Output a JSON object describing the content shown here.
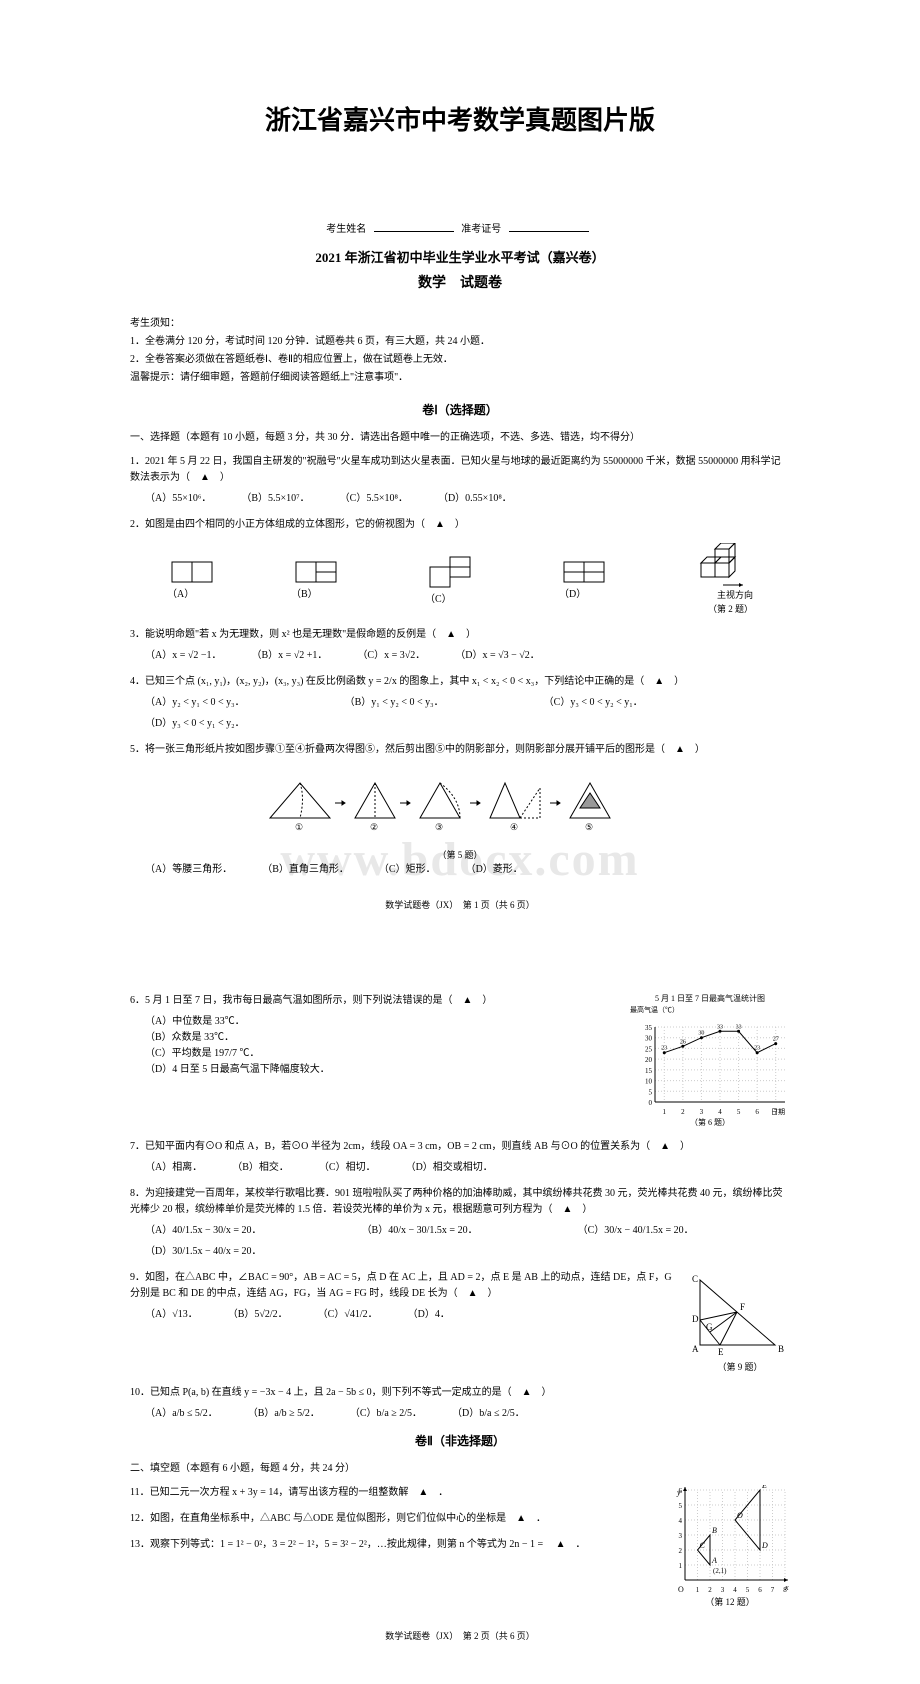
{
  "main_title": "浙江省嘉兴市中考数学真题图片版",
  "header": {
    "candidate_name_label": "考生姓名",
    "ticket_label": "准考证号",
    "exam_title": "2021 年浙江省初中毕业生学业水平考试（嘉兴卷）",
    "subject": "数学　试题卷"
  },
  "instructions": {
    "title": "考生须知：",
    "lines": [
      "1．全卷满分 120 分，考试时间 120 分钟．试题卷共 6 页，有三大题，共 24 小题．",
      "2．全卷答案必须做在答题纸卷Ⅰ、卷Ⅱ的相应位置上，做在试题卷上无效．",
      "温馨提示：请仔细审题，答题前仔细阅读答题纸上\"注意事项\"．"
    ]
  },
  "section1_title": "卷Ⅰ（选择题）",
  "group1_header": "一、选择题（本题有 10 小题，每题 3 分，共 30 分．请选出各题中唯一的正确选项，不选、多选、错选，均不得分）",
  "q1": {
    "text": "1．2021 年 5 月 22 日，我国自主研发的\"祝融号\"火星车成功到达火星表面．已知火星与地球的最近距离约为 55000000 千米，数据 55000000 用科学记数法表示为（　▲　）",
    "a": "（A）55×10⁶．",
    "b": "（B）5.5×10⁷．",
    "c": "（C）5.5×10⁸．",
    "d": "（D）0.55×10⁸．"
  },
  "q2": {
    "text": "2．如图是由四个相同的小正方体组成的立体图形，它的俯视图为（　▲　）",
    "labels": [
      "（A）",
      "（B）",
      "（C）",
      "（D）"
    ],
    "caption": "主视方向\n（第 2 题）"
  },
  "q3": {
    "text": "3．能说明命题\"若 x 为无理数，则 x² 也是无理数\"是假命题的反例是（　▲　）",
    "a": "（A）x = √2 −1．",
    "b": "（B）x = √2 +1．",
    "c": "（C）x = 3√2．",
    "d": "（D）x = √3 − √2．"
  },
  "q4": {
    "text": "4．已知三个点 (x₁, y₁)，(x₂, y₂)，(x₃, y₃) 在反比例函数 y = 2/x 的图象上，其中 x₁ < x₂ < 0 < x₃，下列结论中正确的是（　▲　）",
    "a": "（A）y₂ < y₁ < 0 < y₃．",
    "b": "（B）y₁ < y₂ < 0 < y₃．",
    "c": "（C）y₃ < 0 < y₂ < y₁．",
    "d": "（D）y₃ < 0 < y₁ < y₂．"
  },
  "q5": {
    "text": "5．将一张三角形纸片按如图步骤①至④折叠两次得图⑤，然后剪出图⑤中的阴影部分，则阴影部分展开铺平后的图形是（　▲　）",
    "caption": "（第 5 题）",
    "a": "（A）等腰三角形．",
    "b": "（B）直角三角形．",
    "c": "（C）矩形．",
    "d": "（D）菱形．",
    "steps": [
      "①",
      "②",
      "③",
      "④",
      "⑤"
    ]
  },
  "watermark": "www.bdocx.com",
  "footer1": "数学试题卷（JX）　第 1 页（共 6 页）",
  "q6": {
    "text": "6．5 月 1 日至 7 日，我市每日最高气温如图所示，则下列说法错误的是（　▲　）",
    "a": "（A）中位数是 33℃．",
    "b": "（B）众数是 33℃．",
    "c": "（C）平均数是 197/7 ℃．",
    "d": "（D）4 日至 5 日最高气温下降幅度较大．",
    "chart": {
      "title": "5 月 1 日至 7 日最高气温统计图",
      "ylabel": "最高气温（℃）",
      "xlabel": "日期",
      "x_categories": [
        "1",
        "2",
        "3",
        "4",
        "5",
        "6",
        "7"
      ],
      "values": [
        23,
        26,
        30,
        33,
        33,
        23,
        27.25
      ],
      "visible_labels": [
        "23",
        "26",
        "30",
        "33",
        "33",
        "23",
        "27"
      ],
      "ylim": [
        0,
        35
      ],
      "yticks": [
        0,
        5,
        10,
        15,
        20,
        25,
        30,
        35
      ],
      "line_color": "#000000",
      "marker": "dot",
      "grid": true,
      "background_color": "#ffffff",
      "caption": "（第 6 题）"
    }
  },
  "q7": {
    "text": "7．已知平面内有⊙O 和点 A，B，若⊙O 半径为 2cm，线段 OA = 3 cm，OB = 2 cm，则直线 AB 与⊙O 的位置关系为（　▲　）",
    "a": "（A）相离．",
    "b": "（B）相交．",
    "c": "（C）相切．",
    "d": "（D）相交或相切．"
  },
  "q8": {
    "text": "8．为迎接建党一百周年，某校举行歌唱比赛．901 班啦啦队买了两种价格的加油棒助威，其中缤纷棒共花费 30 元，荧光棒共花费 40 元，缤纷棒比荧光棒少 20 根，缤纷棒单价是荧光棒的 1.5 倍．若设荧光棒的单价为 x 元，根据题意可列方程为（　▲　）",
    "a": "（A）40/1.5x − 30/x = 20．",
    "b": "（B）40/x − 30/1.5x = 20．",
    "c": "（C）30/x − 40/1.5x = 20．",
    "d": "（D）30/1.5x − 40/x = 20．"
  },
  "q9": {
    "text": "9．如图，在△ABC 中，∠BAC = 90°，AB = AC = 5，点 D 在 AC 上，且 AD = 2，点 E 是 AB 上的动点，连结 DE，点 F，G 分别是 BC 和 DE 的中点，连结 AG，FG，当 AG = FG 时，线段 DE 长为（　▲　）",
    "a": "（A）√13．",
    "b": "（B）5√2/2．",
    "c": "（C）√41/2．",
    "d": "（D）4．",
    "caption": "（第 9 题）",
    "figure": {
      "points": [
        "A",
        "B",
        "C",
        "D",
        "E",
        "F",
        "G"
      ],
      "line_color": "#000000"
    }
  },
  "q10": {
    "text": "10．已知点 P(a, b) 在直线 y = −3x − 4 上，且 2a − 5b ≤ 0，则下列不等式一定成立的是（　▲　）",
    "a": "（A）a/b ≤ 5/2．",
    "b": "（B）a/b ≥ 5/2．",
    "c": "（C）b/a ≥ 2/5．",
    "d": "（D）b/a ≤ 2/5．"
  },
  "section2_title": "卷Ⅱ（非选择题）",
  "group2_header": "二、填空题（本题有 6 小题，每题 4 分，共 24 分）",
  "q11": {
    "text": "11．已知二元一次方程 x + 3y = 14，请写出该方程的一组整数解　▲　．"
  },
  "q12": {
    "text": "12．如图，在直角坐标系中，△ABC 与△ODE 是位似图形，则它们位似中心的坐标是　▲　．",
    "caption": "（第 12 题）",
    "figure": {
      "x_range": [
        0,
        8
      ],
      "y_range": [
        0,
        6
      ],
      "points": {
        "A": [
          2,
          1
        ],
        "B": [
          2,
          3
        ],
        "C": [
          1,
          2
        ],
        "D": [
          6,
          2
        ],
        "E": [
          6,
          6
        ],
        "O": [
          4,
          4
        ]
      },
      "grid_color": "#cccccc",
      "line_color": "#000000"
    }
  },
  "q13": {
    "text": "13．观察下列等式：1 = 1² − 0²，3 = 2² − 1²，5 = 3² − 2²，…按此规律，则第 n 个等式为 2n − 1 = 　▲　．"
  },
  "footer2": "数学试题卷（JX）　第 2 页（共 6 页）"
}
